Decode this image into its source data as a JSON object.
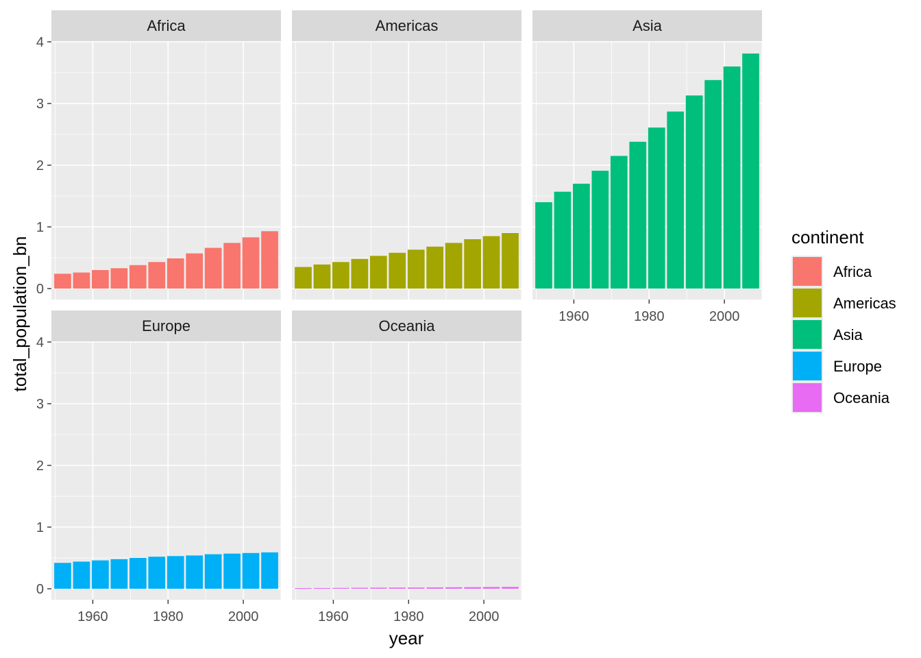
{
  "chart_data": {
    "type": "bar",
    "facet_by": "continent",
    "xlabel": "year",
    "ylabel": "total_population_bn",
    "x_ticks": [
      1960,
      1980,
      2000
    ],
    "y_ticks": [
      0,
      1,
      2,
      3,
      4
    ],
    "xlim": [
      1949,
      2010
    ],
    "ylim": [
      0,
      4
    ],
    "grid": true,
    "legend": {
      "title": "continent",
      "position": "right",
      "entries": [
        {
          "name": "Africa",
          "color": "#F8766D"
        },
        {
          "name": "Americas",
          "color": "#A3A500"
        },
        {
          "name": "Asia",
          "color": "#00BF7D"
        },
        {
          "name": "Europe",
          "color": "#00B0F6"
        },
        {
          "name": "Oceania",
          "color": "#E76BF3"
        }
      ]
    },
    "x": [
      1952,
      1957,
      1962,
      1967,
      1972,
      1977,
      1982,
      1987,
      1992,
      1997,
      2002,
      2007
    ],
    "series": [
      {
        "name": "Africa",
        "values": [
          0.24,
          0.26,
          0.3,
          0.33,
          0.38,
          0.43,
          0.49,
          0.57,
          0.66,
          0.74,
          0.83,
          0.93
        ]
      },
      {
        "name": "Americas",
        "values": [
          0.35,
          0.39,
          0.43,
          0.48,
          0.53,
          0.58,
          0.63,
          0.68,
          0.74,
          0.8,
          0.85,
          0.9
        ]
      },
      {
        "name": "Asia",
        "values": [
          1.4,
          1.57,
          1.7,
          1.91,
          2.15,
          2.38,
          2.61,
          2.87,
          3.13,
          3.38,
          3.6,
          3.81
        ]
      },
      {
        "name": "Europe",
        "values": [
          0.42,
          0.44,
          0.46,
          0.48,
          0.5,
          0.52,
          0.53,
          0.54,
          0.56,
          0.57,
          0.58,
          0.59
        ]
      },
      {
        "name": "Oceania",
        "values": [
          0.011,
          0.012,
          0.014,
          0.016,
          0.018,
          0.019,
          0.02,
          0.022,
          0.024,
          0.026,
          0.028,
          0.03
        ]
      }
    ]
  }
}
